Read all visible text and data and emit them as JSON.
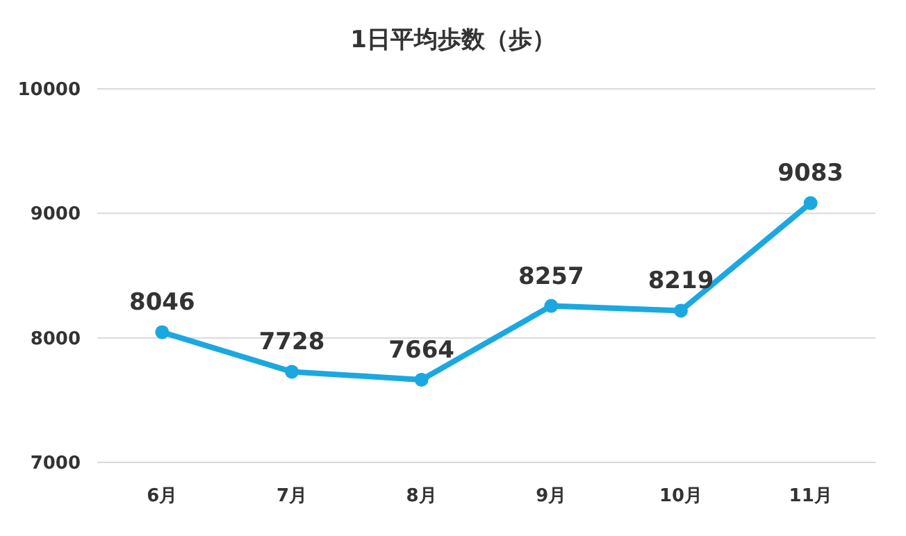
{
  "chart_data": {
    "type": "line",
    "title": "1日平均歩数（歩）",
    "categories": [
      "6月",
      "7月",
      "8月",
      "9月",
      "10月",
      "11月"
    ],
    "series": [
      {
        "color": "#1ba8e0",
        "values": [
          8046,
          7728,
          7664,
          8257,
          8219,
          9083
        ]
      }
    ],
    "ylim": [
      7000,
      10000
    ],
    "yticks": [
      7000,
      8000,
      9000,
      10000
    ],
    "grid": "y",
    "data_labels": true,
    "marker": "circle"
  }
}
